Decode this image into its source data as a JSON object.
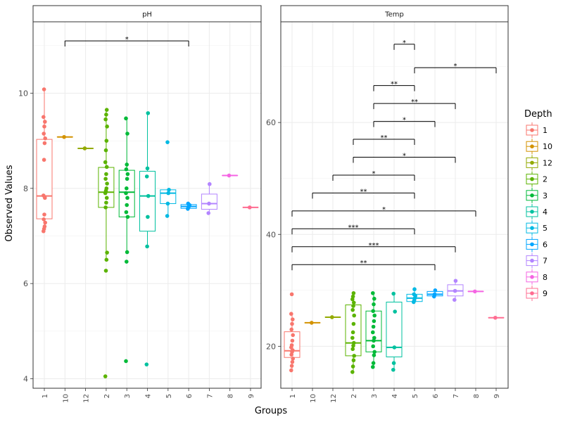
{
  "chart_data": {
    "type": "boxplot",
    "xlabel": "Groups",
    "ylabel": "Observed Values",
    "x_categories": [
      "1",
      "10",
      "12",
      "2",
      "3",
      "4",
      "5",
      "6",
      "7",
      "8",
      "9"
    ],
    "legend": {
      "title": "Depth",
      "placement": "right",
      "entries": [
        {
          "label": "1",
          "color": "#F8766D"
        },
        {
          "label": "10",
          "color": "#D39200"
        },
        {
          "label": "12",
          "color": "#93AA00"
        },
        {
          "label": "2",
          "color": "#5BB300"
        },
        {
          "label": "3",
          "color": "#00BA38"
        },
        {
          "label": "4",
          "color": "#00C19F"
        },
        {
          "label": "5",
          "color": "#00B9E3"
        },
        {
          "label": "6",
          "color": "#00A5FF"
        },
        {
          "label": "7",
          "color": "#B385FF"
        },
        {
          "label": "8",
          "color": "#F564E3"
        },
        {
          "label": "9",
          "color": "#FF6C91"
        }
      ]
    },
    "panels": [
      {
        "strip": "pH",
        "ylim": [
          3.8,
          11.5
        ],
        "yticks": [
          4,
          6,
          8,
          10
        ],
        "groups": [
          {
            "group": "1",
            "box": [
              7.36,
              7.84,
              9.03
            ],
            "whisker": [
              7.1,
              10.08
            ],
            "points": [
              7.1,
              7.15,
              7.2,
              7.28,
              7.35,
              7.45,
              7.8,
              7.85,
              8.6,
              8.95,
              9.05,
              9.15,
              9.3,
              9.4,
              9.5,
              10.08
            ]
          },
          {
            "group": "10",
            "box": [
              9.08,
              9.08,
              9.08
            ],
            "whisker": [
              9.08,
              9.08
            ],
            "points": [
              9.08
            ]
          },
          {
            "group": "12",
            "box": [
              8.84,
              8.84,
              8.84
            ],
            "whisker": [
              8.84,
              8.84
            ],
            "points": [
              8.84
            ]
          },
          {
            "group": "2",
            "box": [
              7.6,
              7.92,
              8.44
            ],
            "whisker": [
              6.5,
              9.65
            ],
            "points": [
              4.05,
              6.27,
              6.5,
              6.65,
              7.6,
              7.7,
              7.8,
              7.9,
              7.95,
              8.0,
              8.1,
              8.2,
              8.3,
              8.45,
              8.55,
              8.8,
              9.0,
              9.3,
              9.45,
              9.55,
              9.65
            ]
          },
          {
            "group": "3",
            "box": [
              7.4,
              7.92,
              8.38
            ],
            "whisker": [
              6.66,
              9.47
            ],
            "points": [
              4.37,
              6.46,
              6.66,
              7.4,
              7.5,
              7.65,
              7.8,
              7.9,
              8.0,
              8.2,
              8.3,
              8.4,
              8.5,
              9.15,
              9.47
            ]
          },
          {
            "group": "4",
            "box": [
              7.1,
              7.84,
              8.36
            ],
            "whisker": [
              6.78,
              9.58
            ],
            "points": [
              4.3,
              6.78,
              7.4,
              7.84,
              8.25,
              8.42,
              9.58
            ]
          },
          {
            "group": "5",
            "box": [
              7.68,
              7.9,
              7.97
            ],
            "whisker": [
              7.42,
              7.97
            ],
            "points": [
              7.42,
              7.68,
              7.9,
              7.97,
              8.97
            ]
          },
          {
            "group": "6",
            "box": [
              7.58,
              7.62,
              7.66
            ],
            "whisker": [
              7.57,
              7.68
            ],
            "points": [
              7.57,
              7.6,
              7.62,
              7.65,
              7.68
            ]
          },
          {
            "group": "7",
            "box": [
              7.56,
              7.68,
              7.88
            ],
            "whisker": [
              7.48,
              8.09
            ],
            "points": [
              7.48,
              7.68,
              8.09
            ]
          },
          {
            "group": "8",
            "box": [
              8.27,
              8.27,
              8.27
            ],
            "whisker": [
              8.27,
              8.27
            ],
            "points": [
              8.27
            ]
          },
          {
            "group": "9",
            "box": [
              7.6,
              7.6,
              7.6
            ],
            "whisker": [
              7.6,
              7.6
            ],
            "points": [
              7.6
            ]
          }
        ],
        "brackets": [
          {
            "from": "10",
            "to": "6",
            "y": 11.1,
            "label": "*"
          }
        ]
      },
      {
        "strip": "Temp",
        "ylim": [
          12.5,
          78
        ],
        "yticks": [
          20,
          40,
          60
        ],
        "groups": [
          {
            "group": "1",
            "box": [
              18.0,
              19.2,
              22.6
            ],
            "whisker": [
              15.7,
              25.8
            ],
            "points": [
              15.7,
              16.5,
              17.2,
              17.8,
              18.5,
              19.0,
              19.3,
              19.8,
              20.2,
              21.0,
              22.0,
              23.0,
              24.0,
              24.8,
              25.8,
              29.3
            ]
          },
          {
            "group": "10",
            "box": [
              24.2,
              24.2,
              24.2
            ],
            "whisker": [
              24.2,
              24.2
            ],
            "points": [
              24.2
            ]
          },
          {
            "group": "12",
            "box": [
              25.2,
              25.2,
              25.2
            ],
            "whisker": [
              25.2,
              25.2
            ],
            "points": [
              25.2
            ]
          },
          {
            "group": "2",
            "box": [
              18.3,
              20.6,
              27.4
            ],
            "whisker": [
              15.4,
              29.5
            ],
            "points": [
              15.4,
              16.4,
              17.5,
              18.3,
              19.5,
              20.1,
              20.6,
              21.5,
              22.5,
              24.0,
              25.5,
              26.5,
              27.2,
              27.8,
              28.4,
              28.9,
              29.5
            ]
          },
          {
            "group": "3",
            "box": [
              19.0,
              21.0,
              26.3
            ],
            "whisker": [
              16.3,
              29.5
            ],
            "points": [
              16.3,
              17.0,
              18.4,
              19.0,
              20.0,
              21.0,
              21.5,
              22.5,
              23.5,
              24.5,
              25.5,
              26.3,
              27.5,
              28.5,
              29.5
            ]
          },
          {
            "group": "4",
            "box": [
              18.1,
              19.8,
              27.9
            ],
            "whisker": [
              15.8,
              29.4
            ],
            "points": [
              15.8,
              17.0,
              19.8,
              26.2,
              29.4
            ]
          },
          {
            "group": "5",
            "box": [
              28.0,
              28.6,
              29.3
            ],
            "whisker": [
              27.9,
              30.2
            ],
            "points": [
              27.9,
              28.2,
              28.6,
              29.0,
              29.3,
              30.2
            ]
          },
          {
            "group": "6",
            "box": [
              29.0,
              29.3,
              29.8
            ],
            "whisker": [
              28.9,
              30.0
            ],
            "points": [
              28.9,
              29.3,
              30.0
            ]
          },
          {
            "group": "7",
            "box": [
              29.0,
              29.9,
              31.0
            ],
            "whisker": [
              28.3,
              31.7
            ],
            "points": [
              28.3,
              29.9,
              31.7
            ]
          },
          {
            "group": "8",
            "box": [
              29.8,
              29.8,
              29.8
            ],
            "whisker": [
              29.8,
              29.8
            ],
            "points": [
              29.8
            ]
          },
          {
            "group": "9",
            "box": [
              25.1,
              25.1,
              25.1
            ],
            "whisker": [
              25.1,
              25.1
            ],
            "points": [
              25.1
            ]
          }
        ],
        "brackets": [
          {
            "from": "4",
            "to": "5",
            "y": 74.0,
            "label": "*"
          },
          {
            "from": "5",
            "to": "9",
            "y": 69.8,
            "label": "*"
          },
          {
            "from": "3",
            "to": "5",
            "y": 66.6,
            "label": "**"
          },
          {
            "from": "3",
            "to": "7",
            "y": 63.4,
            "label": "**"
          },
          {
            "from": "3",
            "to": "6",
            "y": 60.2,
            "label": "*"
          },
          {
            "from": "2",
            "to": "5",
            "y": 57.0,
            "label": "**"
          },
          {
            "from": "2",
            "to": "7",
            "y": 53.8,
            "label": "*"
          },
          {
            "from": "12",
            "to": "5",
            "y": 50.6,
            "label": "*"
          },
          {
            "from": "10",
            "to": "5",
            "y": 47.4,
            "label": "**"
          },
          {
            "from": "1",
            "to": "8",
            "y": 44.2,
            "label": "*"
          },
          {
            "from": "1",
            "to": "5",
            "y": 41.0,
            "label": "***"
          },
          {
            "from": "1",
            "to": "7",
            "y": 37.8,
            "label": "***"
          },
          {
            "from": "1",
            "to": "6",
            "y": 34.6,
            "label": "**"
          }
        ]
      }
    ]
  }
}
